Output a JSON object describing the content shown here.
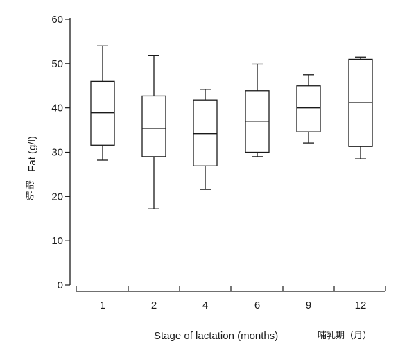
{
  "chart_data": {
    "type": "box",
    "categories": [
      "1",
      "2",
      "4",
      "6",
      "9",
      "12"
    ],
    "boxes": [
      {
        "category": "1",
        "min": 28.2,
        "q1": 31.6,
        "median": 38.9,
        "q3": 46.0,
        "max": 54.0
      },
      {
        "category": "2",
        "min": 17.2,
        "q1": 29.0,
        "median": 35.4,
        "q3": 42.7,
        "max": 51.8
      },
      {
        "category": "4",
        "min": 21.6,
        "q1": 26.9,
        "median": 34.2,
        "q3": 41.8,
        "max": 44.2
      },
      {
        "category": "6",
        "min": 29.0,
        "q1": 30.0,
        "median": 37.0,
        "q3": 43.9,
        "max": 49.9
      },
      {
        "category": "9",
        "min": 32.1,
        "q1": 34.6,
        "median": 40.0,
        "q3": 45.0,
        "max": 47.5
      },
      {
        "category": "12",
        "min": 28.5,
        "q1": 31.3,
        "median": 41.2,
        "q3": 51.0,
        "max": 51.5
      }
    ],
    "yticks": [
      0,
      10,
      20,
      30,
      40,
      50,
      60
    ],
    "ylim": [
      0,
      60
    ],
    "ylabel": "Fat (g/l)",
    "ylabel_cn": "脂肪",
    "xlabel": "Stage of lactation (months)",
    "xlabel_cn": "哺乳期（月）",
    "grid": false
  }
}
